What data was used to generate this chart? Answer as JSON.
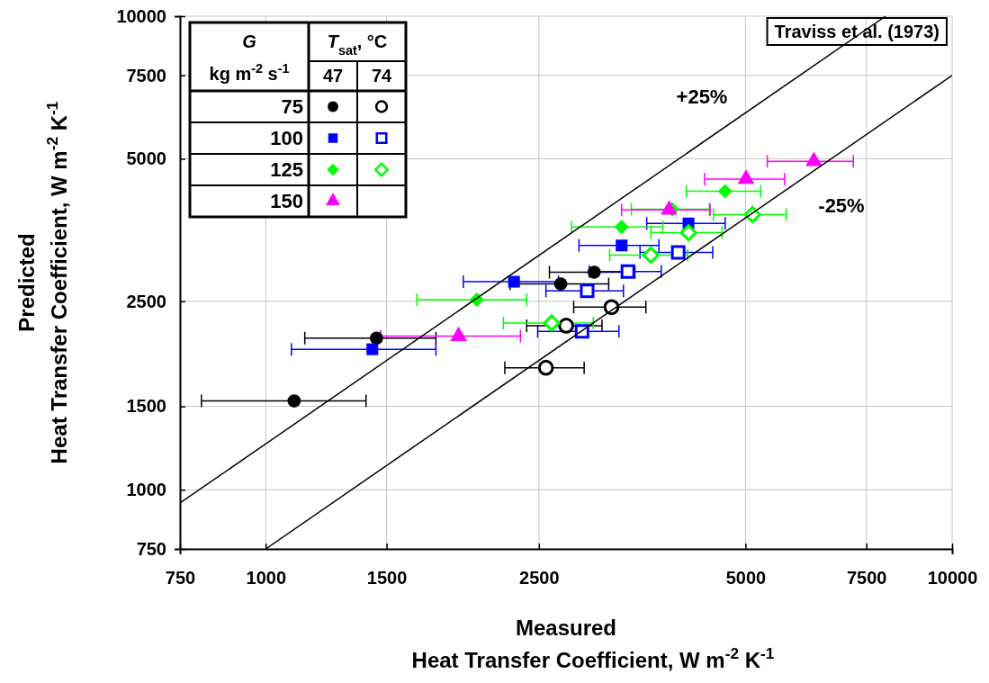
{
  "chart_data": {
    "type": "scatter",
    "xlabel": "Measured\nHeat Transfer Coefficient, W m$^{-2}$ K$^{-1}$",
    "ylabel": "Predicted\nHeat Transfer Coefficient, W m$^{-2}$ K$^{-1}$",
    "log": "xy",
    "grid": true,
    "legend": "top left",
    "xlim": [
      750,
      10000
    ],
    "xticks": [
      750,
      1000,
      1500,
      2500,
      5000,
      7500,
      10000
    ],
    "ylim": [
      750,
      10000
    ],
    "yticks": [
      750,
      1000,
      1500,
      2500,
      5000,
      7500,
      10000
    ],
    "annotations": [
      "G",
      "kg m$^{-2}$ s$^{-1}$",
      "T$_{sat}$, °C",
      "47",
      "74",
      "Traviss et al. (1973)"
    ],
    "series": [
      {
        "name": "75",
        "color": "#000000",
        "marker": "circle",
        "x": [
          1100,
          1450,
          2690,
          3010
        ],
        "values": [
          1540,
          2090,
          2720,
          2880
        ],
        "xerrors": [
          [
            806,
            1400
          ],
          [
            1140,
            1770
          ],
          [
            2270,
            3160
          ],
          [
            2590,
            3450
          ]
        ]
      },
      {
        "color": "#000000",
        "marker": "circle",
        "x": [
          2560,
          2740,
          3190
        ],
        "values": [
          1810,
          2220,
          2430
        ],
        "xerrors": [
          [
            2230,
            2910
          ],
          [
            2400,
            3090
          ],
          [
            2810,
            3580
          ]
        ]
      },
      {
        "name": "100",
        "color": "#0000ff",
        "marker": "square",
        "x": [
          1430,
          2300,
          3300,
          4130
        ],
        "values": [
          1980,
          2750,
          3280,
          3650
        ],
        "xerrors": [
          [
            1090,
            1770
          ],
          [
            1940,
            2670
          ],
          [
            2860,
            3740
          ],
          [
            3590,
            4670
          ]
        ]
      },
      {
        "color": "#0000ff",
        "marker": "square",
        "x": [
          2890,
          2940,
          3370,
          3990
        ],
        "values": [
          2160,
          2630,
          2890,
          3170
        ],
        "xerrors": [
          [
            2490,
            3270
          ],
          [
            2560,
            3320
          ],
          [
            2960,
            3770
          ],
          [
            3510,
            4480
          ]
        ]
      },
      {
        "name": "125",
        "color": "#00ff00",
        "marker": "diamond",
        "x": [
          2030,
          3300,
          3910,
          4670
        ],
        "values": [
          2520,
          3590,
          3910,
          4270
        ],
        "xerrors": [
          [
            1660,
            2400
          ],
          [
            2790,
            3790
          ],
          [
            3410,
            4430
          ],
          [
            4100,
            5260
          ]
        ]
      },
      {
        "color": "#00ff00",
        "marker": "diamond",
        "x": [
          2610,
          3640,
          4130,
          5120
        ],
        "values": [
          2250,
          3130,
          3490,
          3810
        ],
        "xerrors": [
          [
            2220,
            3000
          ],
          [
            3170,
            4120
          ],
          [
            3640,
            4620
          ],
          [
            4490,
            5730
          ]
        ]
      },
      {
        "name": "150",
        "color": "#ff00ff",
        "marker": "triangle",
        "x": [
          1910,
          3870,
          5010,
          6290
        ],
        "values": [
          2110,
          3900,
          4530,
          4940
        ],
        "xerrors": [
          [
            1470,
            2350
          ],
          [
            3300,
            4440
          ],
          [
            4360,
            5700
          ],
          [
            5380,
            7180
          ]
        ]
      },
      {
        "type": "line",
        "name": "+25%",
        "color": "#000000",
        "marker": "none",
        "x": [
          750,
          8000
        ],
        "values": [
          937.5,
          10000
        ]
      },
      {
        "type": "line",
        "name": "-25%",
        "color": "#000000",
        "marker": "none",
        "x": [
          1000,
          10000
        ],
        "values": [
          750,
          7500
        ]
      }
    ]
  }
}
